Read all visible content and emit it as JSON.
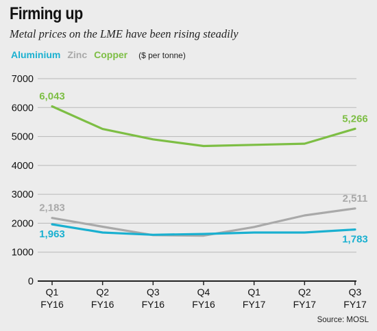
{
  "title": "Firming up",
  "subtitle": "Metal prices on the LME have been rising steadily",
  "unit_note": "($ per tonne)",
  "source": "Source: MOSL",
  "colors": {
    "aluminium": "#1ab0d0",
    "zinc": "#a9a9a9",
    "copper": "#7dbe44",
    "grid": "#b8b8b8",
    "axis": "#222222"
  },
  "chart_data": {
    "type": "line",
    "categories": [
      "Q1 FY16",
      "Q2 FY16",
      "Q3 FY16",
      "Q4 FY16",
      "Q1 FY17",
      "Q2 FY17",
      "Q3 FY17"
    ],
    "category_lines": [
      [
        "Q1",
        "FY16"
      ],
      [
        "Q2",
        "FY16"
      ],
      [
        "Q3",
        "FY16"
      ],
      [
        "Q4",
        "FY16"
      ],
      [
        "Q1",
        "FY17"
      ],
      [
        "Q2",
        "FY17"
      ],
      [
        "Q3",
        "FY17"
      ]
    ],
    "ylim": [
      0,
      7000
    ],
    "yticks": [
      0,
      1000,
      2000,
      3000,
      4000,
      5000,
      6000,
      7000
    ],
    "grid": true,
    "legend_position": "top-left",
    "series": [
      {
        "name": "Aluminium",
        "color": "#1ab0d0",
        "values": [
          1963,
          1680,
          1600,
          1630,
          1680,
          1680,
          1783
        ],
        "labels": [
          {
            "index": 0,
            "text": "1,963",
            "position": "below"
          },
          {
            "index": 6,
            "text": "1,783",
            "position": "below"
          }
        ]
      },
      {
        "name": "Zinc",
        "color": "#a9a9a9",
        "values": [
          2183,
          1880,
          1590,
          1570,
          1870,
          2270,
          2511
        ],
        "labels": [
          {
            "index": 0,
            "text": "2,183",
            "position": "above"
          },
          {
            "index": 6,
            "text": "2,511",
            "position": "above"
          }
        ]
      },
      {
        "name": "Copper",
        "color": "#7dbe44",
        "values": [
          6043,
          5260,
          4900,
          4670,
          4710,
          4750,
          5266
        ],
        "labels": [
          {
            "index": 0,
            "text": "6,043",
            "position": "above"
          },
          {
            "index": 6,
            "text": "5,266",
            "position": "above"
          }
        ]
      }
    ]
  }
}
